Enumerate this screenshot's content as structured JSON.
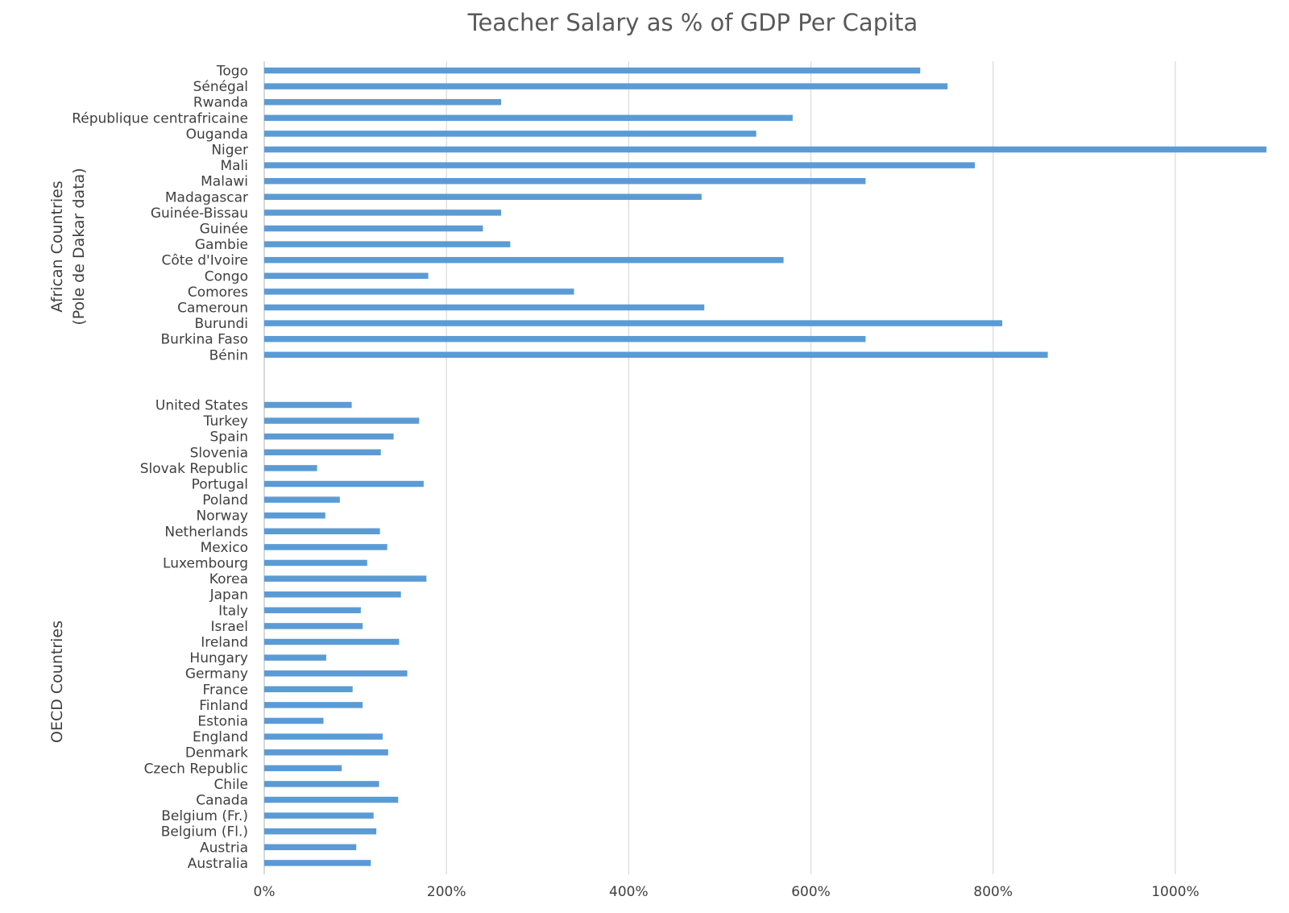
{
  "chart_data": {
    "type": "bar",
    "orientation": "horizontal",
    "title": "Teacher Salary as % of GDP Per Capita",
    "xlabel": "",
    "ylabel": "",
    "xlim": [
      0,
      1100
    ],
    "x_ticks": [
      "0%",
      "200%",
      "400%",
      "600%",
      "800%",
      "1000%"
    ],
    "grid": "vertical",
    "legend": "none",
    "bar_color": "#5b9bd5",
    "groups": [
      {
        "label_lines": [
          "African Countries",
          "(Pole de Dakar data)"
        ],
        "categories": [
          "Togo",
          "Sénégal",
          "Rwanda",
          "République centrafricaine",
          "Ouganda",
          "Niger",
          "Mali",
          "Malawi",
          "Madagascar",
          "Guinée-Bissau",
          "Guinée",
          "Gambie",
          "Côte d'Ivoire",
          "Congo",
          "Comores",
          "Cameroun",
          "Burundi",
          "Burkina Faso",
          "Bénin"
        ],
        "values": [
          720,
          750,
          260,
          580,
          540,
          1100,
          780,
          660,
          480,
          260,
          240,
          270,
          570,
          180,
          340,
          483,
          810,
          660,
          860
        ]
      },
      {
        "label_lines": [
          "OECD Countries"
        ],
        "categories": [
          "United States",
          "Turkey",
          "Spain",
          "Slovenia",
          "Slovak Republic",
          "Portugal",
          "Poland",
          "Norway",
          "Netherlands",
          "Mexico",
          "Luxembourg",
          "Korea",
          "Japan",
          "Italy",
          "Israel",
          "Ireland",
          "Hungary",
          "Germany",
          "France",
          "Finland",
          "Estonia",
          "England",
          "Denmark",
          "Czech Republic",
          "Chile",
          "Canada",
          "Belgium (Fr.)",
          "Belgium (Fl.)",
          "Austria",
          "Australia"
        ],
        "values": [
          96,
          170,
          142,
          128,
          58,
          175,
          83,
          67,
          127,
          135,
          113,
          178,
          150,
          106,
          108,
          148,
          68,
          157,
          97,
          108,
          65,
          130,
          136,
          85,
          126,
          147,
          120,
          123,
          101,
          117
        ]
      }
    ]
  }
}
